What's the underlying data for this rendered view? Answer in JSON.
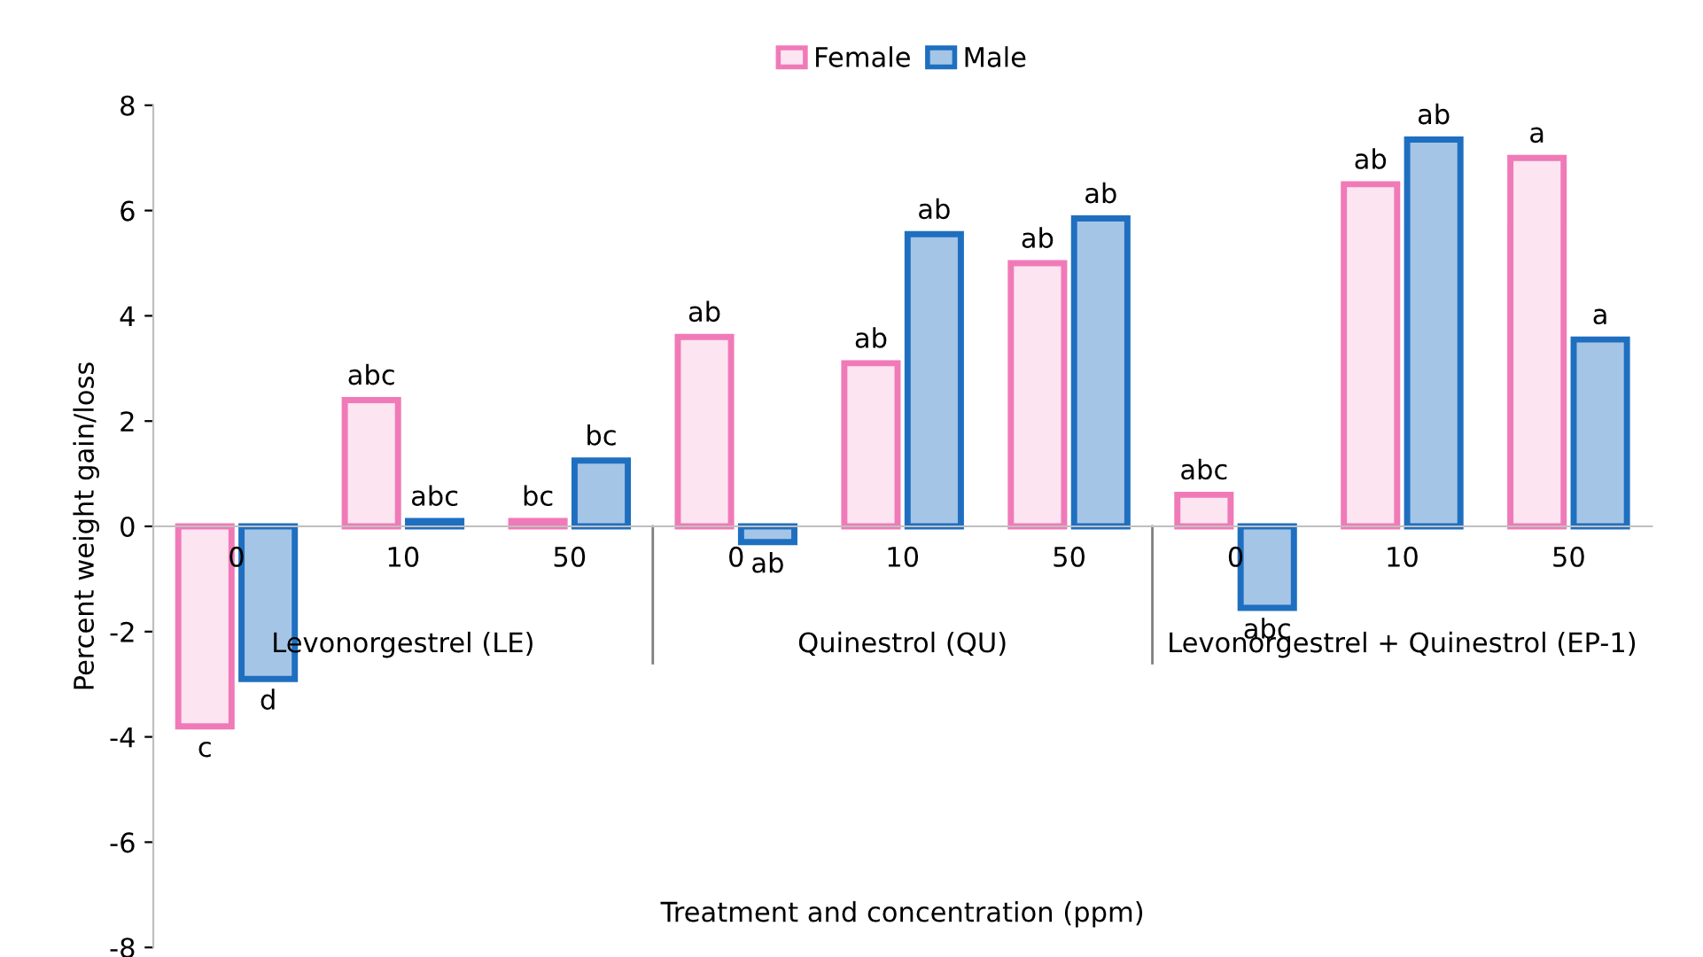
{
  "chart_data": {
    "type": "bar",
    "ylabel": "Percent weight gain/loss",
    "xlabel": "Treatment and concentration (ppm)",
    "categories": [
      "0",
      "10",
      "50",
      "0",
      "10",
      "50",
      "0",
      "10",
      "50"
    ],
    "annotations": [
      "Levonorgestrel (LE)",
      "Quinestrol (QU)",
      "Levonorgestrel + Quinestrol (EP-1)"
    ],
    "series": [
      {
        "name": "Female",
        "color": "#f07ab8",
        "values": [
          -3.8,
          2.4,
          0.1,
          3.6,
          3.1,
          5.0,
          0.6,
          6.5,
          7.0
        ],
        "value_labels": [
          "c",
          "abc",
          "bc",
          "ab",
          "ab",
          "ab",
          "abc",
          "ab",
          "a"
        ]
      },
      {
        "name": "Male",
        "color": "#1f6fc0",
        "values": [
          -2.9,
          0.1,
          1.25,
          -0.3,
          5.55,
          5.85,
          -1.55,
          7.35,
          3.55
        ],
        "value_labels": [
          "d",
          "abc",
          "bc",
          "ab",
          "ab",
          "ab",
          "abc",
          "ab",
          "a"
        ]
      }
    ],
    "ylim": [
      -8,
      8
    ],
    "yticks": [
      -8,
      -6,
      -4,
      -2,
      0,
      2,
      4,
      6,
      8
    ],
    "grid": false,
    "legend": "top"
  }
}
